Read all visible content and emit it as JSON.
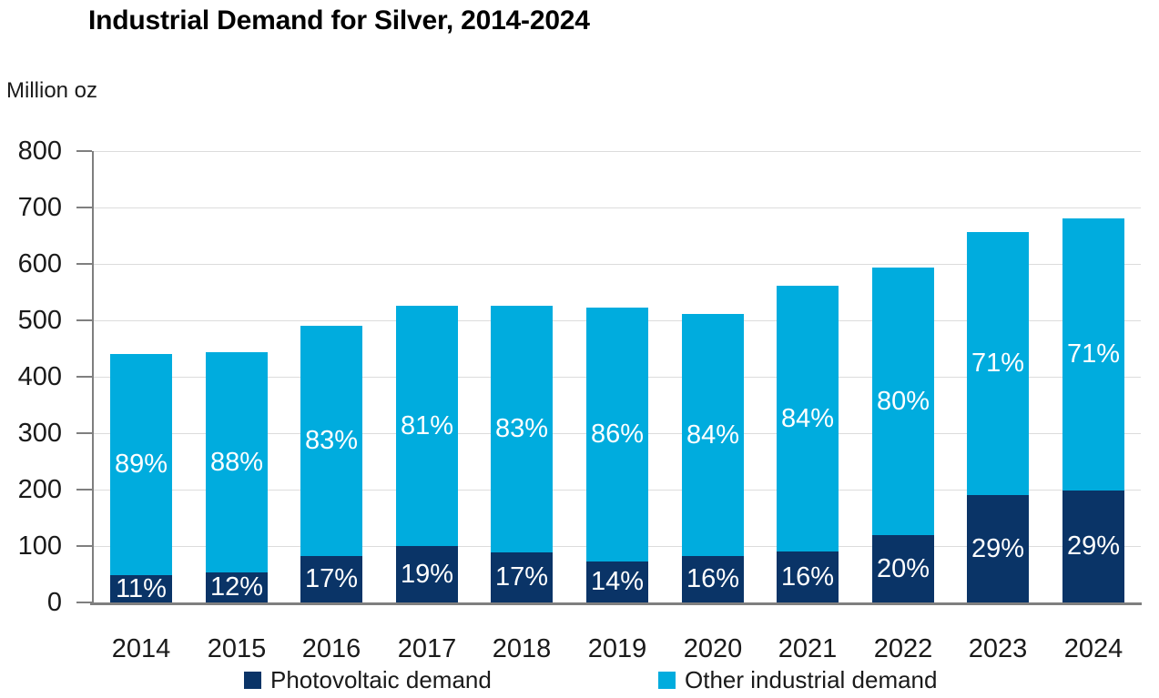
{
  "page_title": "Industrial Demand for Silver, 2014-2024",
  "y_axis_unit_label": "Million oz",
  "colors": {
    "photovoltaic": "#0A3467",
    "other_industrial": "#00ACDE",
    "gridline": "#DCDCDC",
    "axis": "#7F7F7F",
    "axis_text": "#1A1A1A",
    "bar_label_text": "#FFFFFF",
    "title_text": "#000000"
  },
  "chart_data": {
    "type": "bar",
    "stacked": true,
    "title": "Industrial Demand for Silver, 2014-2024",
    "ylabel": "Million oz",
    "ylim": [
      0,
      800
    ],
    "y_ticks": [
      0,
      100,
      200,
      300,
      400,
      500,
      600,
      700,
      800
    ],
    "grid": "horizontal gridlines every 100, light gray",
    "legend_position": "bottom",
    "categories": [
      "2014",
      "2015",
      "2016",
      "2017",
      "2018",
      "2019",
      "2020",
      "2021",
      "2022",
      "2023",
      "2024"
    ],
    "totals_million_oz": [
      441,
      444,
      491,
      526,
      525,
      523,
      511,
      562,
      593,
      657,
      681
    ],
    "series": [
      {
        "name": "Photovoltaic demand",
        "color": "#0A3467",
        "values_million_oz": [
          49,
          53,
          83,
          100,
          89,
          73,
          82,
          90,
          119,
          191,
          198
        ],
        "pct_labels": [
          "11%",
          "12%",
          "17%",
          "19%",
          "17%",
          "14%",
          "16%",
          "16%",
          "20%",
          "29%",
          "29%"
        ]
      },
      {
        "name": "Other industrial demand",
        "color": "#00ACDE",
        "values_million_oz": [
          392,
          391,
          408,
          426,
          436,
          450,
          429,
          472,
          474,
          466,
          483
        ],
        "pct_labels": [
          "89%",
          "88%",
          "83%",
          "81%",
          "83%",
          "86%",
          "84%",
          "84%",
          "80%",
          "71%",
          "71%"
        ]
      }
    ]
  },
  "legend": {
    "items": [
      {
        "label": "Photovoltaic demand",
        "color": "#0A3467"
      },
      {
        "label": "Other industrial demand",
        "color": "#00ACDE"
      }
    ]
  }
}
